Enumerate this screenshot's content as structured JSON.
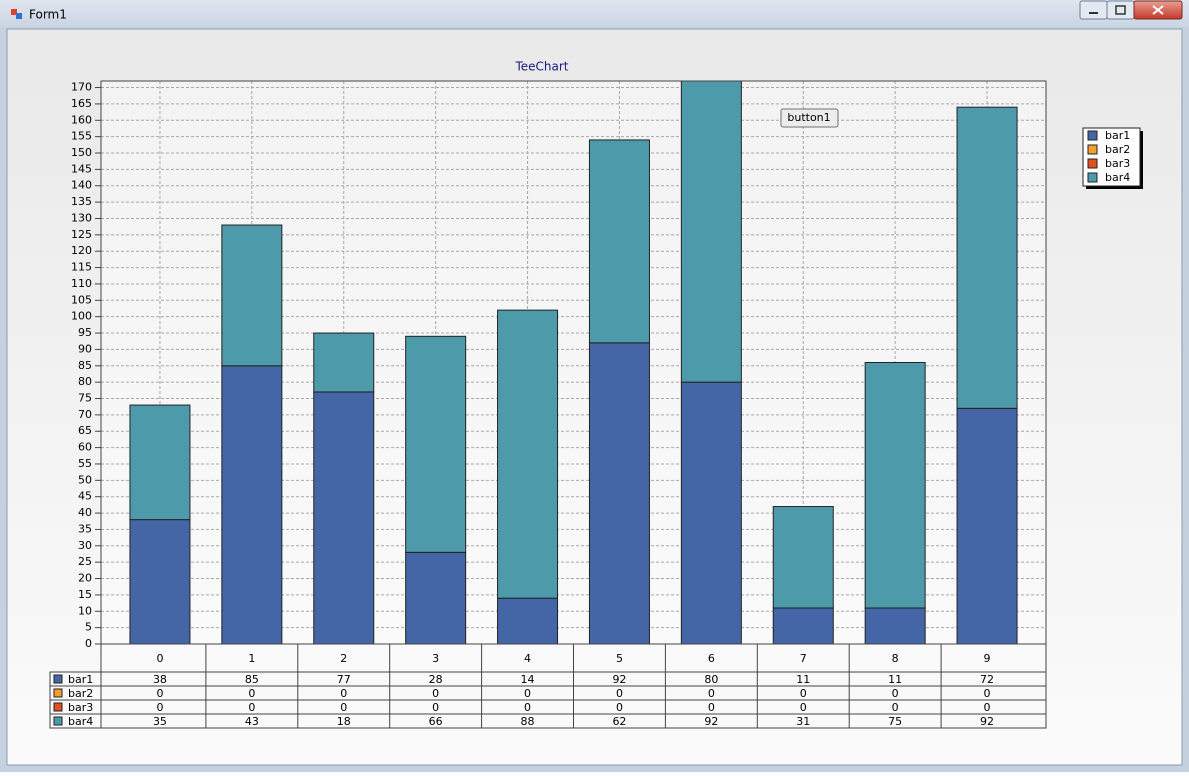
{
  "window": {
    "title": "Form1"
  },
  "button": "button1",
  "chart_data": {
    "type": "bar",
    "stacked": true,
    "title": "TeeChart",
    "categories": [
      "0",
      "1",
      "2",
      "3",
      "4",
      "5",
      "6",
      "7",
      "8",
      "9"
    ],
    "series": [
      {
        "name": "bar1",
        "color": "#4466a6",
        "values": [
          38,
          85,
          77,
          28,
          14,
          92,
          80,
          11,
          11,
          72
        ]
      },
      {
        "name": "bar2",
        "color": "#f0a030",
        "values": [
          0,
          0,
          0,
          0,
          0,
          0,
          0,
          0,
          0,
          0
        ]
      },
      {
        "name": "bar3",
        "color": "#e05020",
        "values": [
          0,
          0,
          0,
          0,
          0,
          0,
          0,
          0,
          0,
          0
        ]
      },
      {
        "name": "bar4",
        "color": "#4d9aab",
        "values": [
          35,
          43,
          18,
          66,
          88,
          62,
          92,
          31,
          75,
          92
        ]
      }
    ],
    "ylim": [
      0,
      172
    ],
    "yticks": [
      0,
      5,
      10,
      15,
      20,
      25,
      30,
      35,
      40,
      45,
      50,
      55,
      60,
      65,
      70,
      75,
      80,
      85,
      90,
      95,
      100,
      105,
      110,
      115,
      120,
      125,
      130,
      135,
      140,
      145,
      150,
      155,
      160,
      165,
      170
    ],
    "grid": true,
    "legend": "right",
    "data_table": true
  }
}
